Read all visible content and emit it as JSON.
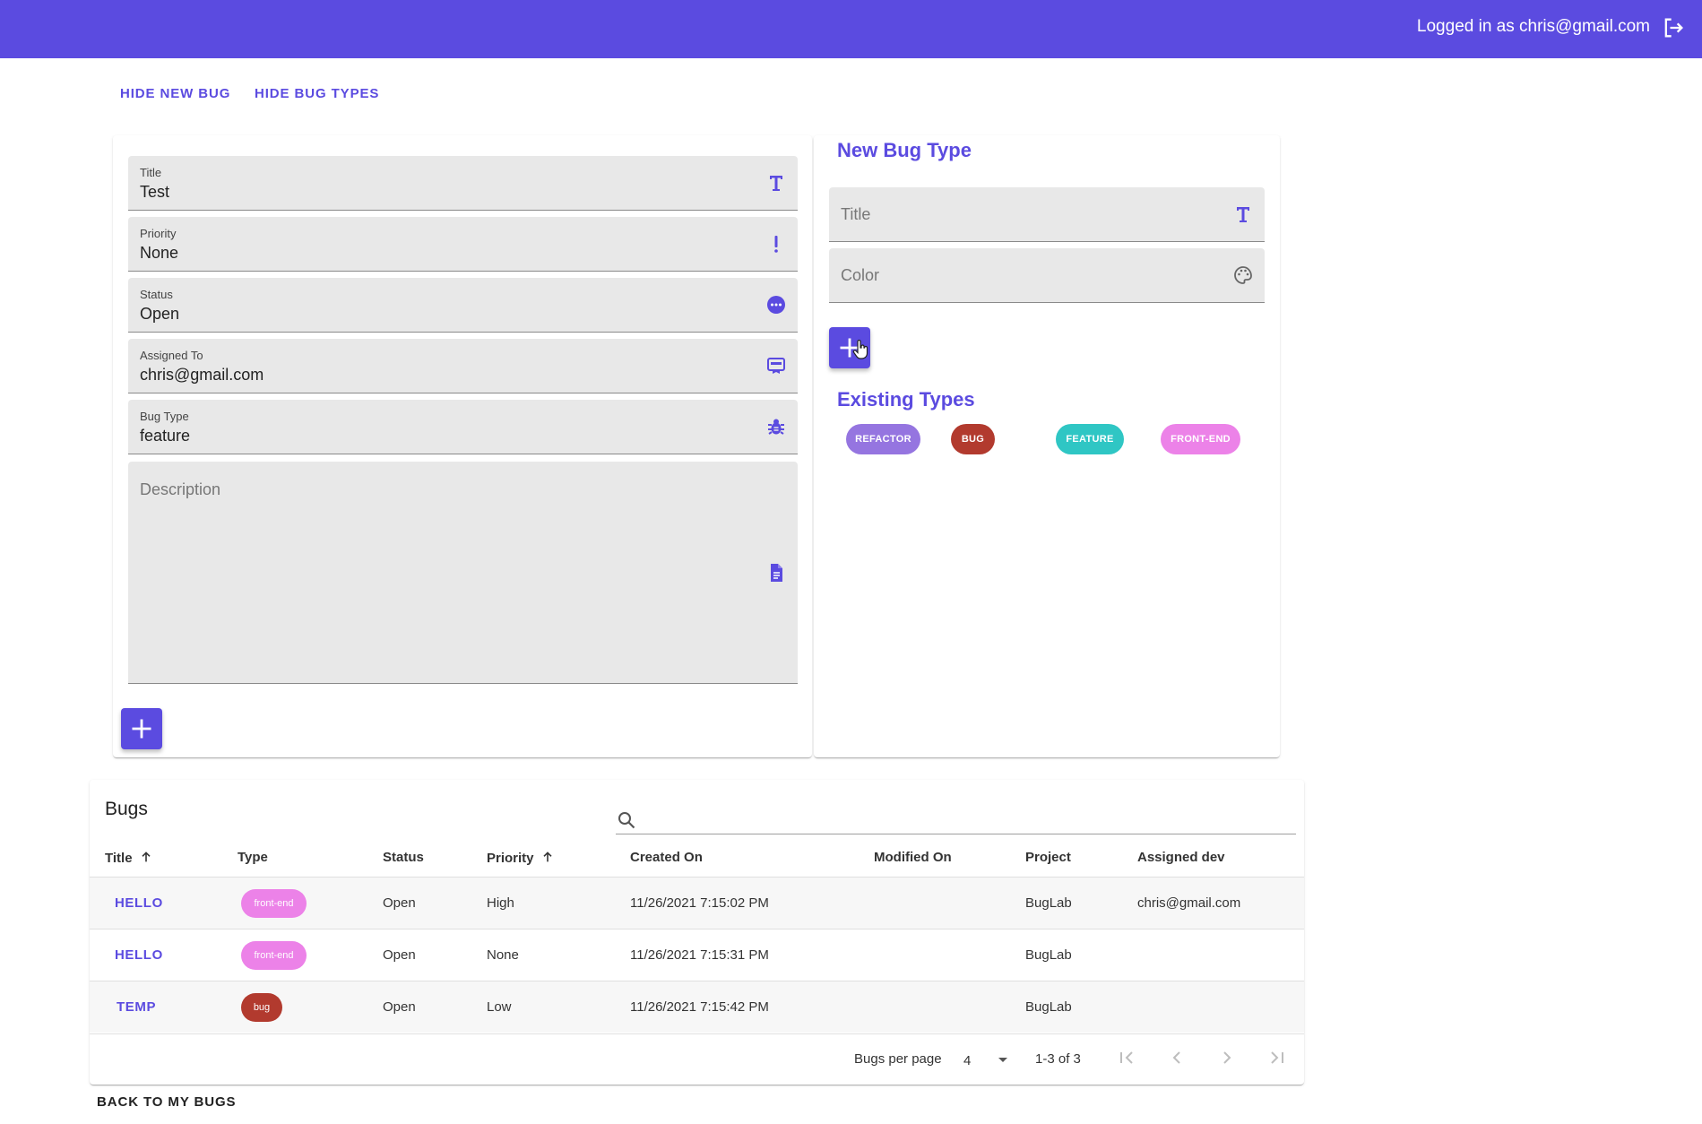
{
  "header": {
    "user_text": "Logged in as chris@gmail.com",
    "logout_icon": "logout-icon"
  },
  "toolbar": {
    "hide_new_bug": "HIDE NEW BUG",
    "hide_bug_types": "HIDE BUG TYPES"
  },
  "new_bug_form": {
    "title": {
      "label": "Title",
      "value": "Test",
      "icon": "title-icon"
    },
    "priority": {
      "label": "Priority",
      "value": "None",
      "icon": "exclamation-icon"
    },
    "status": {
      "label": "Status",
      "value": "Open",
      "icon": "more-circle-icon"
    },
    "assigned_to": {
      "label": "Assigned To",
      "value": "chris@gmail.com",
      "icon": "badge-icon"
    },
    "bug_type": {
      "label": "Bug Type",
      "value": "feature",
      "icon": "bug-icon"
    },
    "description": {
      "placeholder": "Description",
      "icon": "document-icon"
    },
    "add_icon": "plus-icon"
  },
  "bug_types": {
    "new_title": "New Bug Type",
    "title_placeholder": "Title",
    "color_placeholder": "Color",
    "existing_title": "Existing Types",
    "types": [
      {
        "label": "REFACTOR",
        "color": "#9575e0"
      },
      {
        "label": "BUG",
        "color": "#b23a2e"
      },
      {
        "label": "FEATURE",
        "color": "#2fc6c4"
      },
      {
        "label": "FRONT-END",
        "color": "#ec82e8"
      }
    ]
  },
  "bugs_table": {
    "title": "Bugs",
    "columns": [
      "Title",
      "Type",
      "Status",
      "Priority",
      "Created On",
      "Modified On",
      "Project",
      "Assigned dev"
    ],
    "rows": [
      {
        "title": "HELLO",
        "type": "front-end",
        "type_color": "#ec82e8",
        "status": "Open",
        "priority": "High",
        "created": "11/26/2021 7:15:02 PM",
        "modified": "",
        "project": "BugLab",
        "assigned": "chris@gmail.com"
      },
      {
        "title": "HELLO",
        "type": "front-end",
        "type_color": "#ec82e8",
        "status": "Open",
        "priority": "None",
        "created": "11/26/2021 7:15:31 PM",
        "modified": "",
        "project": "BugLab",
        "assigned": ""
      },
      {
        "title": "TEMP",
        "type": "bug",
        "type_color": "#b23a2e",
        "status": "Open",
        "priority": "Low",
        "created": "11/26/2021 7:15:42 PM",
        "modified": "",
        "project": "BugLab",
        "assigned": ""
      }
    ],
    "pagination": {
      "per_page_label": "Bugs per page",
      "per_page_value": "4",
      "range": "1-3 of 3"
    }
  },
  "back_button": "BACK TO MY BUGS"
}
